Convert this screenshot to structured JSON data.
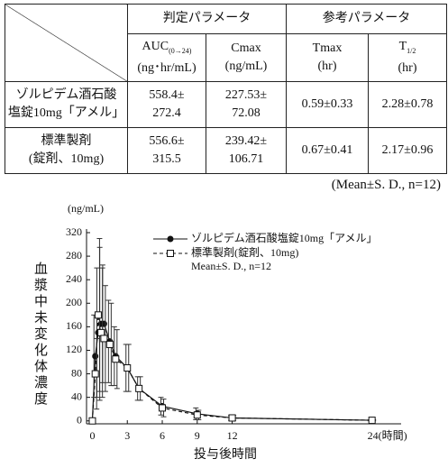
{
  "table": {
    "groups": [
      "判定パラメータ",
      "参考パラメータ"
    ],
    "columns": [
      {
        "main": "AUC",
        "sub": "(0→24)",
        "unit": "(ng･hr/mL)"
      },
      {
        "main": "Cmax",
        "unit": "(ng/mL)"
      },
      {
        "main": "Tmax",
        "unit": "(hr)"
      },
      {
        "main": "T",
        "sub": "1/2",
        "unit": "(hr)"
      }
    ],
    "rows": [
      {
        "name": [
          "ゾルピデム酒石酸",
          "塩錠10mg「アメル」"
        ],
        "cells": [
          [
            "558.4±",
            "272.4"
          ],
          [
            "227.53±",
            "72.08"
          ],
          [
            "0.59±0.33"
          ],
          [
            "2.28±0.78"
          ]
        ]
      },
      {
        "name": [
          "標準製剤",
          "(錠剤、10mg)"
        ],
        "cells": [
          [
            "556.6±",
            "315.5"
          ],
          [
            "239.42±",
            "106.71"
          ],
          [
            "0.67±0.41"
          ],
          [
            "2.17±0.96"
          ]
        ]
      }
    ],
    "note": "(Mean±S. D.,  n=12)"
  },
  "chart_data": {
    "type": "line",
    "y_unit": "(ng/mL)",
    "ylabel": "血漿中未変化体濃度",
    "xlabel": "投与後時間",
    "annotation": "Mean±S. D.,  n=12",
    "x": [
      0,
      0.25,
      0.5,
      0.75,
      1,
      1.5,
      2,
      3,
      4,
      6,
      9,
      12,
      24
    ],
    "series": [
      {
        "name": "ゾルピデム酒石酸塩錠10mg「アメル」",
        "color": "#111111",
        "line_style": "solid",
        "marker": "circle",
        "values": [
          0,
          110,
          150,
          165,
          165,
          135,
          110,
          90,
          55,
          25,
          12,
          5,
          1
        ],
        "errors": [
          0,
          70,
          110,
          130,
          100,
          70,
          50,
          40,
          20,
          15,
          10,
          4,
          1
        ]
      },
      {
        "name": "標準製剤(錠剤、10mg)",
        "color": "#111111",
        "line_style": "dashed",
        "marker": "square",
        "values": [
          0,
          80,
          180,
          150,
          140,
          130,
          105,
          90,
          55,
          22,
          10,
          5,
          1
        ],
        "errors": [
          0,
          60,
          130,
          110,
          90,
          70,
          50,
          40,
          20,
          15,
          8,
          4,
          1
        ]
      }
    ],
    "xlim": [
      -0.5,
      26.5
    ],
    "ylim": [
      -5,
      320
    ],
    "xticks": [
      0,
      3,
      6,
      9,
      12,
      {
        "value": 24,
        "label": "24(時間)"
      }
    ],
    "yticks": [
      0,
      40,
      80,
      120,
      160,
      200,
      240,
      280,
      320
    ]
  }
}
